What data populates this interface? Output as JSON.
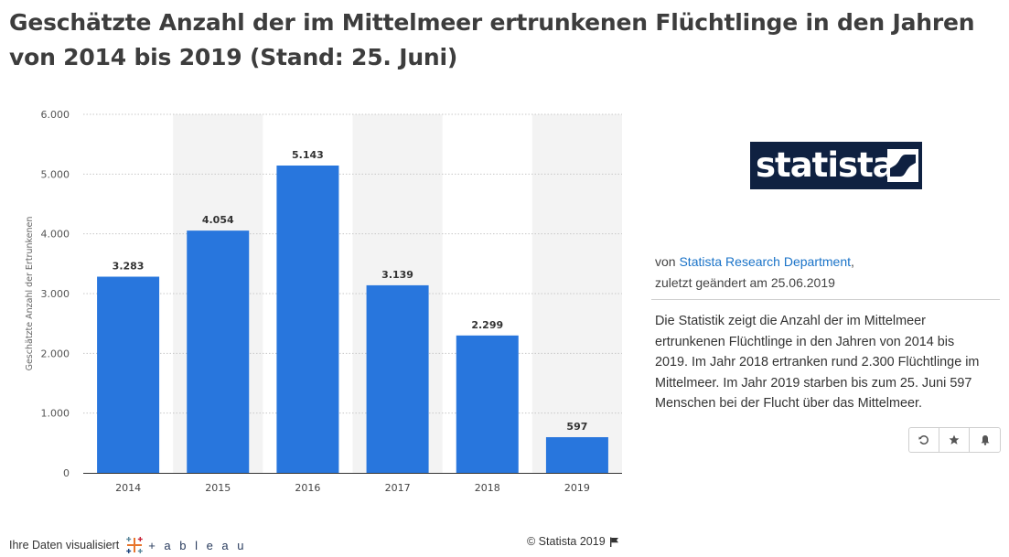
{
  "title": "Geschätzte Anzahl der im Mittelmeer ertrunkenen Flüchtlinge in den Jahren von 2014 bis 2019 (Stand: 25. Juni)",
  "logo_text": "statista",
  "meta": {
    "by_prefix": "von ",
    "author": "Statista Research Department",
    "by_suffix": ",",
    "changed": "zuletzt geändert am 25.06.2019"
  },
  "description": "Die Statistik zeigt die Anzahl der im Mittelmeer ertrunkenen Flüchtlinge in den Jahren von 2014 bis 2019. Im Jahr 2018 ertranken rund 2.300 Flüchtlinge im Mittelmeer. Im Jahr 2019 starben bis zum 25. Juni 597 Menschen bei der Flucht über das Mittelmeer.",
  "actions": [
    {
      "icon": "history-icon",
      "glyph": "↺"
    },
    {
      "icon": "star-icon",
      "glyph": "★"
    },
    {
      "icon": "bell-icon",
      "glyph": "🔔"
    }
  ],
  "footer": {
    "left": "Ihre Daten visualisiert",
    "tableau": "+ a b l e a u",
    "right": "© Statista 2019"
  },
  "colors": {
    "bar": "#2876dd",
    "band": "#f3f3f3",
    "logo_bg": "#0f2141",
    "link": "#1a73c8"
  },
  "chart_data": {
    "type": "bar",
    "categories": [
      "2014",
      "2015",
      "2016",
      "2017",
      "2018",
      "2019"
    ],
    "values": [
      3283,
      4054,
      5143,
      3139,
      2299,
      597
    ],
    "value_labels": [
      "3.283",
      "4.054",
      "5.143",
      "3.139",
      "2.299",
      "597"
    ],
    "ylabel": "Geschätzte Anzahl der Ertrunkenen",
    "yticks": [
      0,
      1000,
      2000,
      3000,
      4000,
      5000,
      6000
    ],
    "ytick_labels": [
      "0",
      "1.000",
      "2.000",
      "3.000",
      "4.000",
      "5.000",
      "6.000"
    ],
    "ylim": [
      0,
      6000
    ],
    "grid": true
  }
}
